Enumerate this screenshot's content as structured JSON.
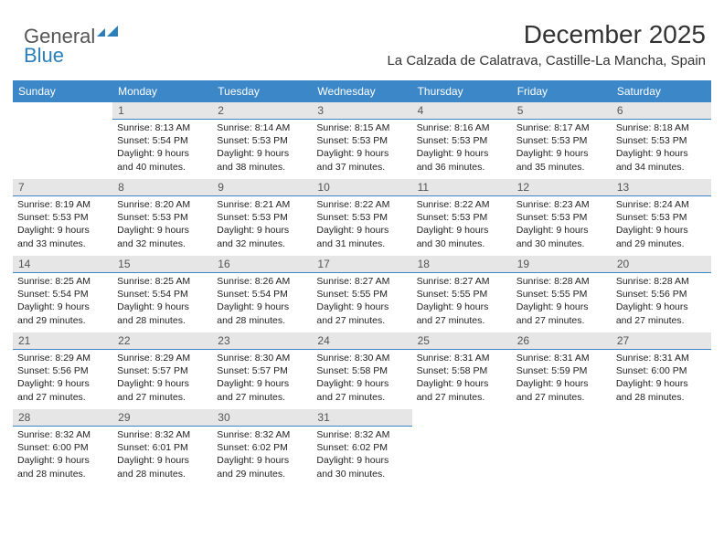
{
  "brand": {
    "part1": "General",
    "part2": "Blue"
  },
  "title": "December 2025",
  "subtitle": "La Calzada de Calatrava, Castille-La Mancha, Spain",
  "colors": {
    "header_bg": "#3b87c8",
    "header_text": "#ffffff",
    "daynum_bg": "#e6e6e6",
    "daynum_border": "#3b87c8",
    "body_text": "#222222",
    "logo_gray": "#555555",
    "logo_blue": "#2a7fbb",
    "background": "#ffffff"
  },
  "typography": {
    "title_fontsize": 28,
    "subtitle_fontsize": 15,
    "dayheader_fontsize": 12,
    "daynum_fontsize": 12,
    "daytext_fontsize": 10.5
  },
  "dayHeaders": [
    "Sunday",
    "Monday",
    "Tuesday",
    "Wednesday",
    "Thursday",
    "Friday",
    "Saturday"
  ],
  "grid": {
    "rows": 5,
    "cols": 7,
    "first_day_col": 1,
    "last_day": 31
  },
  "days": {
    "1": {
      "sunrise": "8:13 AM",
      "sunset": "5:54 PM",
      "daylight": "9 hours and 40 minutes."
    },
    "2": {
      "sunrise": "8:14 AM",
      "sunset": "5:53 PM",
      "daylight": "9 hours and 38 minutes."
    },
    "3": {
      "sunrise": "8:15 AM",
      "sunset": "5:53 PM",
      "daylight": "9 hours and 37 minutes."
    },
    "4": {
      "sunrise": "8:16 AM",
      "sunset": "5:53 PM",
      "daylight": "9 hours and 36 minutes."
    },
    "5": {
      "sunrise": "8:17 AM",
      "sunset": "5:53 PM",
      "daylight": "9 hours and 35 minutes."
    },
    "6": {
      "sunrise": "8:18 AM",
      "sunset": "5:53 PM",
      "daylight": "9 hours and 34 minutes."
    },
    "7": {
      "sunrise": "8:19 AM",
      "sunset": "5:53 PM",
      "daylight": "9 hours and 33 minutes."
    },
    "8": {
      "sunrise": "8:20 AM",
      "sunset": "5:53 PM",
      "daylight": "9 hours and 32 minutes."
    },
    "9": {
      "sunrise": "8:21 AM",
      "sunset": "5:53 PM",
      "daylight": "9 hours and 32 minutes."
    },
    "10": {
      "sunrise": "8:22 AM",
      "sunset": "5:53 PM",
      "daylight": "9 hours and 31 minutes."
    },
    "11": {
      "sunrise": "8:22 AM",
      "sunset": "5:53 PM",
      "daylight": "9 hours and 30 minutes."
    },
    "12": {
      "sunrise": "8:23 AM",
      "sunset": "5:53 PM",
      "daylight": "9 hours and 30 minutes."
    },
    "13": {
      "sunrise": "8:24 AM",
      "sunset": "5:53 PM",
      "daylight": "9 hours and 29 minutes."
    },
    "14": {
      "sunrise": "8:25 AM",
      "sunset": "5:54 PM",
      "daylight": "9 hours and 29 minutes."
    },
    "15": {
      "sunrise": "8:25 AM",
      "sunset": "5:54 PM",
      "daylight": "9 hours and 28 minutes."
    },
    "16": {
      "sunrise": "8:26 AM",
      "sunset": "5:54 PM",
      "daylight": "9 hours and 28 minutes."
    },
    "17": {
      "sunrise": "8:27 AM",
      "sunset": "5:55 PM",
      "daylight": "9 hours and 27 minutes."
    },
    "18": {
      "sunrise": "8:27 AM",
      "sunset": "5:55 PM",
      "daylight": "9 hours and 27 minutes."
    },
    "19": {
      "sunrise": "8:28 AM",
      "sunset": "5:55 PM",
      "daylight": "9 hours and 27 minutes."
    },
    "20": {
      "sunrise": "8:28 AM",
      "sunset": "5:56 PM",
      "daylight": "9 hours and 27 minutes."
    },
    "21": {
      "sunrise": "8:29 AM",
      "sunset": "5:56 PM",
      "daylight": "9 hours and 27 minutes."
    },
    "22": {
      "sunrise": "8:29 AM",
      "sunset": "5:57 PM",
      "daylight": "9 hours and 27 minutes."
    },
    "23": {
      "sunrise": "8:30 AM",
      "sunset": "5:57 PM",
      "daylight": "9 hours and 27 minutes."
    },
    "24": {
      "sunrise": "8:30 AM",
      "sunset": "5:58 PM",
      "daylight": "9 hours and 27 minutes."
    },
    "25": {
      "sunrise": "8:31 AM",
      "sunset": "5:58 PM",
      "daylight": "9 hours and 27 minutes."
    },
    "26": {
      "sunrise": "8:31 AM",
      "sunset": "5:59 PM",
      "daylight": "9 hours and 27 minutes."
    },
    "27": {
      "sunrise": "8:31 AM",
      "sunset": "6:00 PM",
      "daylight": "9 hours and 28 minutes."
    },
    "28": {
      "sunrise": "8:32 AM",
      "sunset": "6:00 PM",
      "daylight": "9 hours and 28 minutes."
    },
    "29": {
      "sunrise": "8:32 AM",
      "sunset": "6:01 PM",
      "daylight": "9 hours and 28 minutes."
    },
    "30": {
      "sunrise": "8:32 AM",
      "sunset": "6:02 PM",
      "daylight": "9 hours and 29 minutes."
    },
    "31": {
      "sunrise": "8:32 AM",
      "sunset": "6:02 PM",
      "daylight": "9 hours and 30 minutes."
    }
  },
  "labels": {
    "sunrise": "Sunrise:",
    "sunset": "Sunset:",
    "daylight": "Daylight:"
  }
}
